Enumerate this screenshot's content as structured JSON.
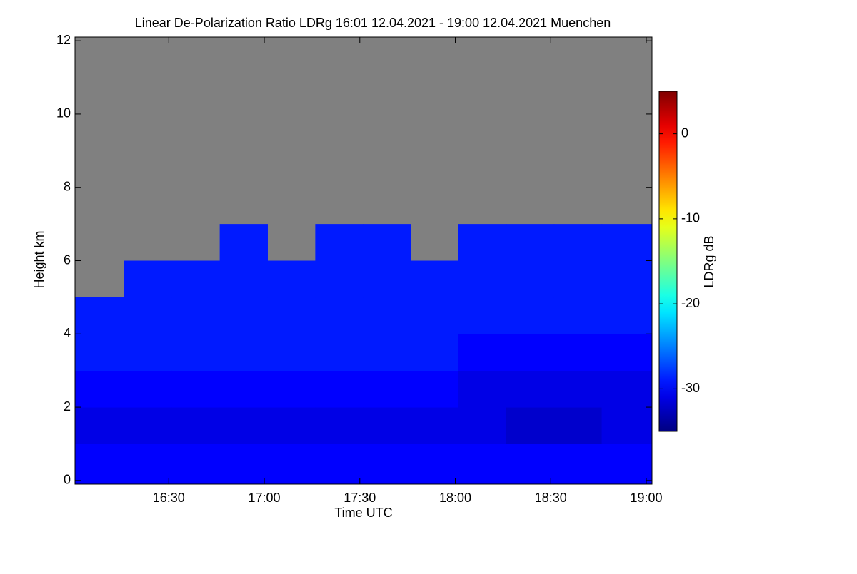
{
  "chart_data": {
    "type": "heatmap",
    "title": "Linear De-Polarization Ratio LDRg   16:01 12.04.2021 - 19:00 12.04.2021 Muenchen",
    "xlabel": "Time UTC",
    "ylabel": "Height km",
    "colorbar_label": "LDRg dB",
    "xlim": [
      "16:01",
      "19:00"
    ],
    "xticks": [
      "16:30",
      "17:00",
      "17:30",
      "18:00",
      "18:30",
      "19:00"
    ],
    "ylim": [
      -0.1,
      12.1
    ],
    "yticks": [
      0,
      2,
      4,
      6,
      8,
      10,
      12
    ],
    "clim": [
      -35,
      5
    ],
    "cticks": [
      0,
      -10,
      -20,
      -30
    ],
    "colormap": "jet",
    "missing_color": "#808080",
    "x": [
      "16:01",
      "16:16",
      "16:31",
      "16:46",
      "17:01",
      "17:16",
      "17:31",
      "17:46",
      "18:01",
      "18:16",
      "18:31",
      "18:46"
    ],
    "y": [
      0,
      1,
      2,
      3,
      4,
      5,
      6,
      7,
      8,
      9,
      10,
      11
    ],
    "z": [
      [
        -30,
        -31,
        -30,
        -29,
        -29,
        null,
        null,
        null,
        null,
        null,
        null,
        null
      ],
      [
        -30,
        -31,
        -30,
        -29,
        -29,
        -29,
        null,
        null,
        null,
        null,
        null,
        null
      ],
      [
        -30,
        -31,
        -30,
        -29,
        -29,
        -29,
        null,
        null,
        null,
        null,
        null,
        null
      ],
      [
        -30,
        -31,
        -30,
        -29,
        -29,
        -29,
        -29,
        null,
        null,
        null,
        null,
        null
      ],
      [
        -30,
        -31,
        -30,
        -29,
        -29,
        -29,
        null,
        null,
        null,
        null,
        null,
        null
      ],
      [
        -30,
        -31,
        -30,
        -29,
        -29,
        -29,
        -29,
        null,
        null,
        null,
        null,
        null
      ],
      [
        -30,
        -31,
        -30,
        -29,
        -29,
        -29,
        -29,
        null,
        null,
        null,
        null,
        null
      ],
      [
        -30,
        -31,
        -30,
        -29,
        -29,
        -29,
        null,
        null,
        null,
        null,
        null,
        null
      ],
      [
        -30,
        -31,
        -31,
        -30,
        -29,
        -29,
        -29,
        null,
        null,
        null,
        null,
        null
      ],
      [
        -30,
        -32,
        -31,
        -30,
        -29,
        -29,
        -29,
        null,
        null,
        null,
        null,
        null
      ],
      [
        -30,
        -32,
        -31,
        -30,
        -29,
        -29,
        -29,
        null,
        null,
        null,
        null,
        null
      ],
      [
        -30,
        -31,
        -31,
        -30,
        -29,
        -29,
        -29,
        null,
        null,
        null,
        null,
        null
      ]
    ]
  }
}
